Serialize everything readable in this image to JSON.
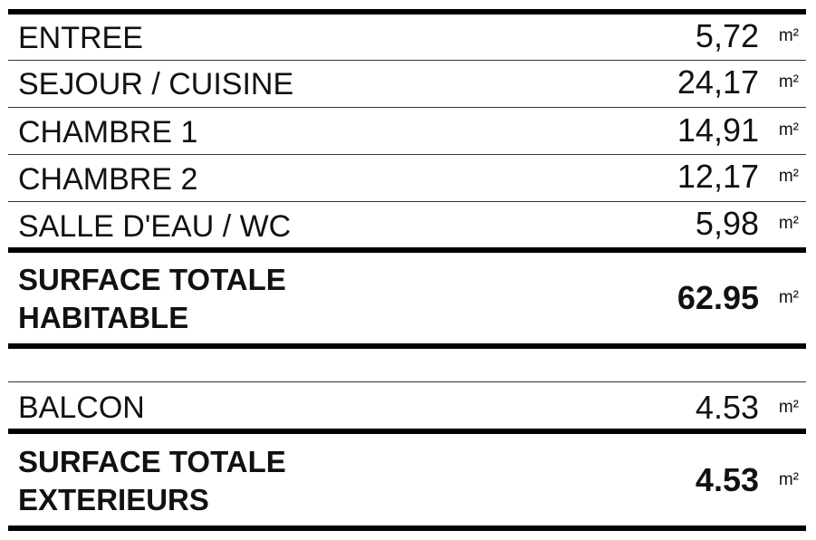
{
  "rooms": [
    {
      "label": "ENTREE",
      "value": "5,72",
      "unit": "m²"
    },
    {
      "label": "SEJOUR / CUISINE",
      "value": "24,17",
      "unit": "m²"
    },
    {
      "label": "CHAMBRE 1",
      "value": "14,91",
      "unit": "m²"
    },
    {
      "label": "CHAMBRE 2",
      "value": "12,17",
      "unit": "m²"
    },
    {
      "label": "SALLE D'EAU / WC",
      "value": "5,98",
      "unit": "m²"
    }
  ],
  "total_habitable": {
    "line1": "SURFACE TOTALE",
    "line2": "HABITABLE",
    "value": "62.95",
    "unit": "m²"
  },
  "balcon": {
    "label": "BALCON",
    "value": "4.53",
    "unit": "m²"
  },
  "total_exterieurs": {
    "line1": "SURFACE TOTALE",
    "line2": "EXTERIEURS",
    "value": "4.53",
    "unit": "m²"
  }
}
